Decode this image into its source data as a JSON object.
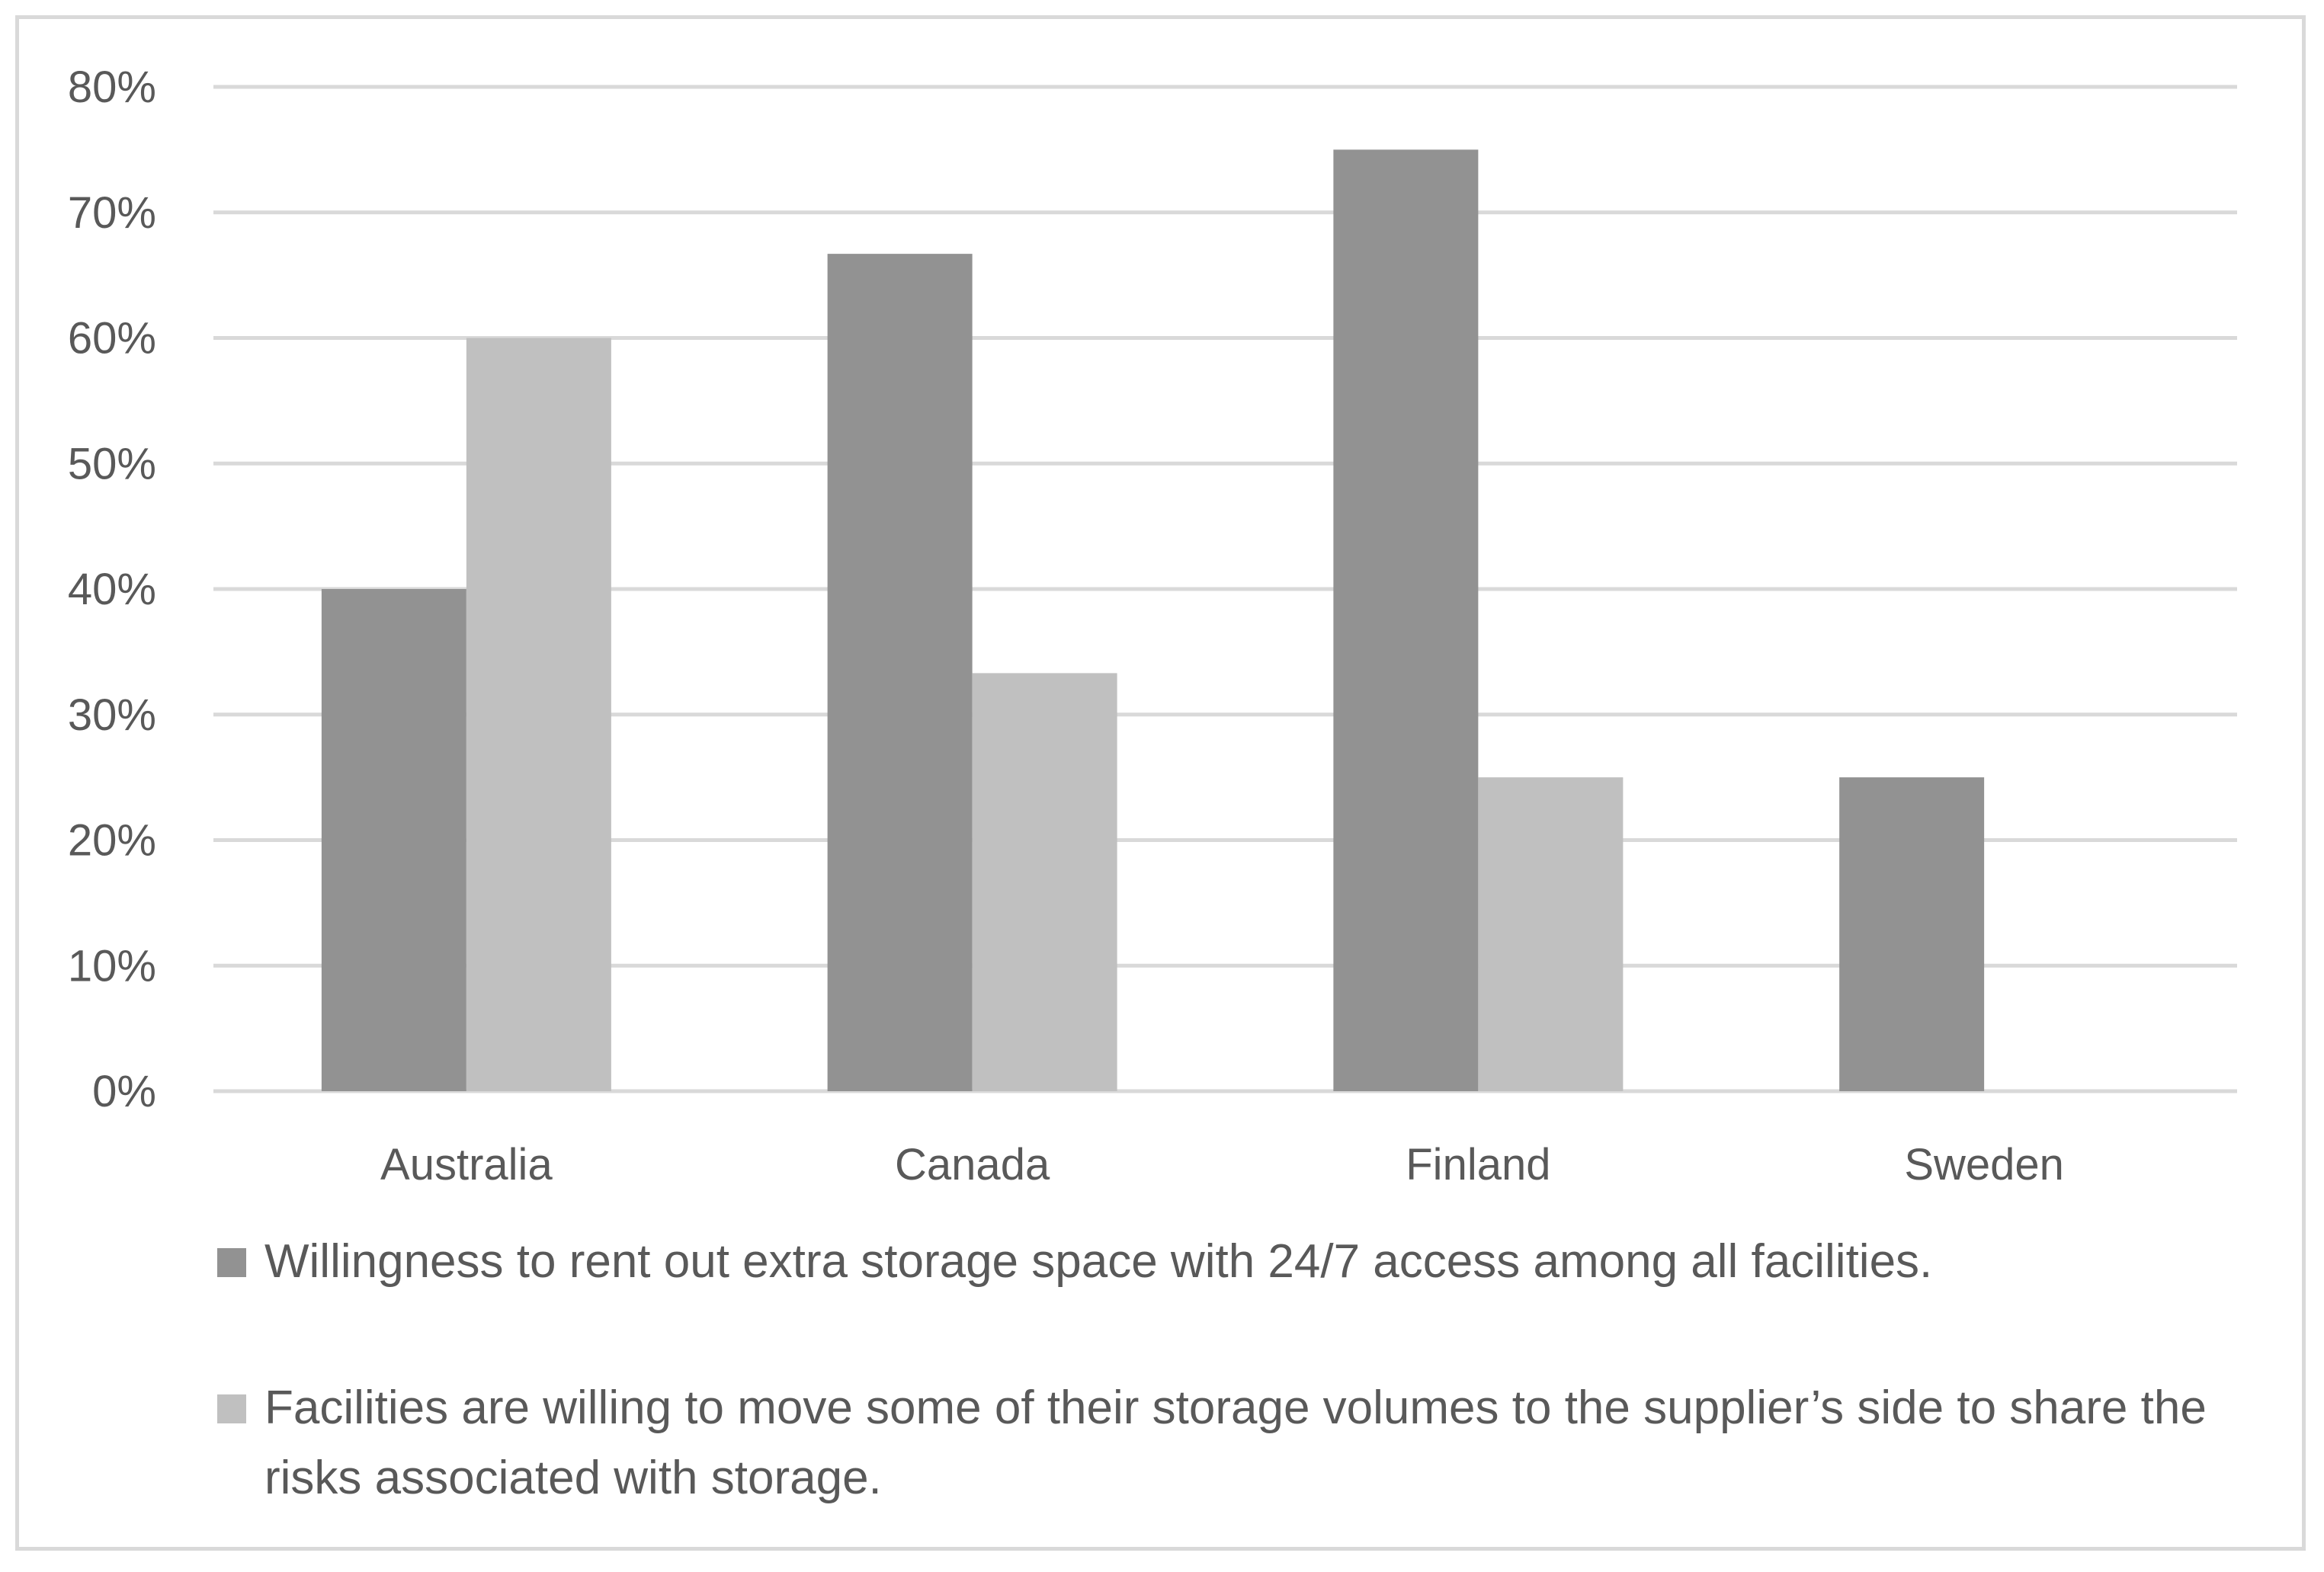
{
  "chart_data": {
    "type": "bar",
    "title": "",
    "xlabel": "",
    "ylabel": "",
    "categories": [
      "Australia",
      "Canada",
      "Finland",
      "Sweden"
    ],
    "series": [
      {
        "name": "Willingness to rent out extra storage space with 24/7 access among all facilities.",
        "values": [
          40,
          66.7,
          75,
          25
        ],
        "color": "#929292"
      },
      {
        "name": "Facilities are willing to move some of their storage volumes to the supplier’s side to share the risks associated with storage.",
        "values": [
          60,
          33.3,
          25,
          0
        ],
        "color": "#c0c0c0"
      }
    ],
    "ylim": [
      0,
      80
    ],
    "yticks": [
      "0%",
      "10%",
      "20%",
      "30%",
      "40%",
      "50%",
      "60%",
      "70%",
      "80%"
    ],
    "grid": true,
    "legend_position": "bottom",
    "gridline_color": "#d9d9d9",
    "text_color": "#595959"
  }
}
